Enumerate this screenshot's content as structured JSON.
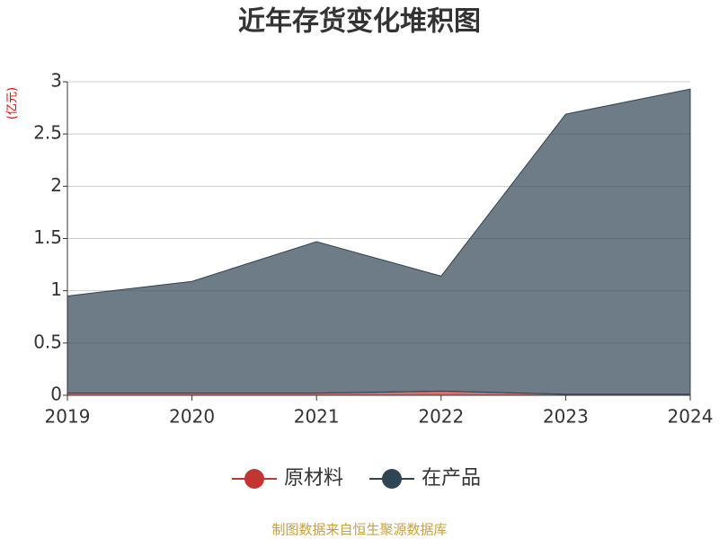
{
  "chart_data": {
    "type": "stacked_area",
    "title": "近年存货变化堆积图",
    "y_unit": "(亿元)",
    "categories": [
      "2019",
      "2020",
      "2021",
      "2022",
      "2023",
      "2024"
    ],
    "series": [
      {
        "name": "原材料",
        "color": "#c23531",
        "values": [
          0.02,
          0.02,
          0.02,
          0.04,
          0.01,
          0.01
        ]
      },
      {
        "name": "在产品",
        "color": "#2f4554",
        "values": [
          0.93,
          1.07,
          1.45,
          1.1,
          2.68,
          2.92
        ]
      }
    ],
    "ylim": [
      0,
      3
    ],
    "yticks": [
      0,
      0.5,
      1,
      1.5,
      2,
      2.5,
      3
    ],
    "grid": true,
    "source": "制图数据来自恒生聚源数据库"
  }
}
